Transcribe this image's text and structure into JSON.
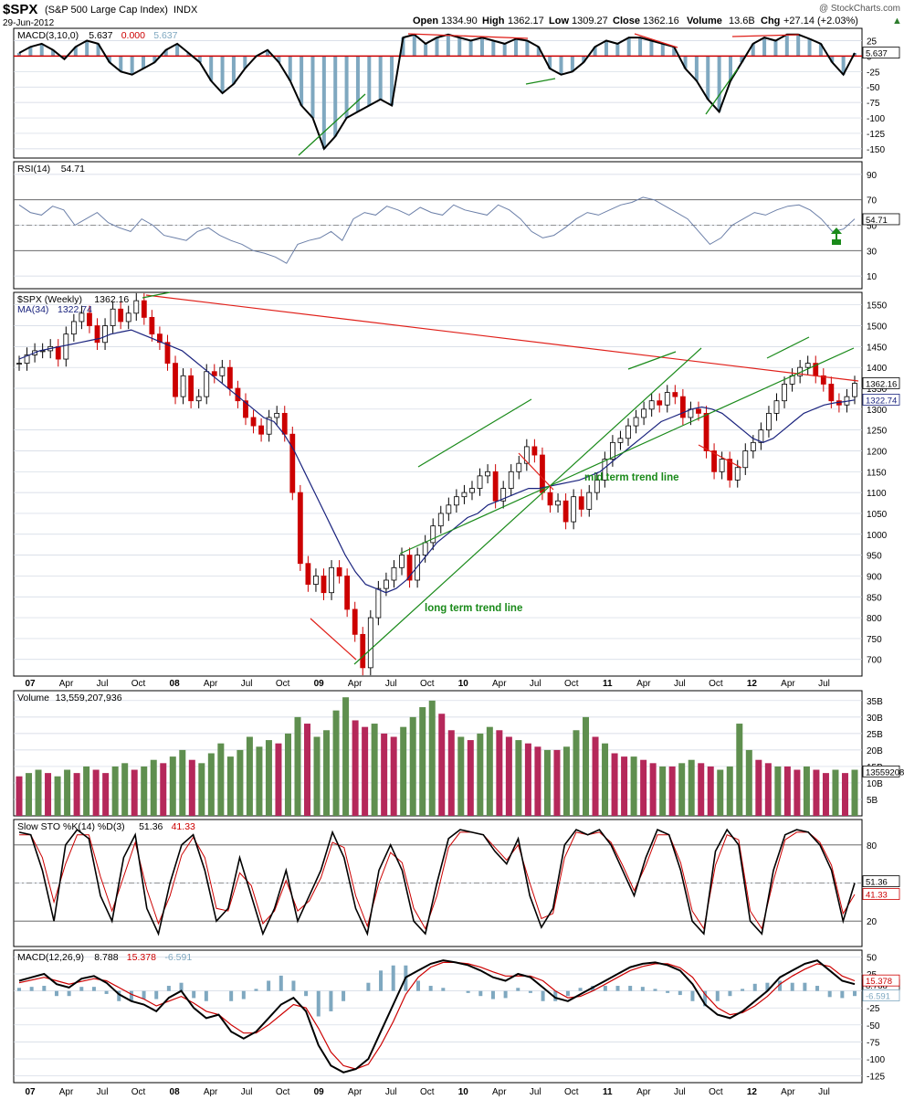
{
  "header": {
    "symbol": "$SPX",
    "description": "(S&P 500 Large Cap Index)",
    "exchange": "INDX",
    "date": "29-Jun-2012",
    "watermark": "@ StockCharts.com",
    "open_label": "Open",
    "open": "1334.90",
    "high_label": "High",
    "high": "1362.17",
    "low_label": "Low",
    "low": "1309.27",
    "close_label": "Close",
    "close": "1362.16",
    "volume_label": "Volume",
    "volume": "13.6B",
    "chg_label": "Chg",
    "chg": "+27.14 (+2.03%)",
    "chg_arrow": "▲"
  },
  "colors": {
    "up": "#2e7d2e",
    "down": "#cc0000",
    "ma": "#1a237e",
    "hist": "#7fa8c0",
    "rsi": "#6b7fa8",
    "vol_up": "#5f8f4f",
    "vol_down": "#b5285a",
    "grid": "#cfd6e2",
    "annotation_green": "#1a8a1a",
    "annotation_red": "#e0201a"
  },
  "time_axis": [
    "07",
    "Apr",
    "Jul",
    "Oct",
    "08",
    "Apr",
    "Jul",
    "Oct",
    "09",
    "Apr",
    "Jul",
    "Oct",
    "10",
    "Apr",
    "Jul",
    "Oct",
    "11",
    "Apr",
    "Jul",
    "Oct",
    "12",
    "Apr",
    "Jul"
  ],
  "annotations": {
    "mid_term": "mid term trend line",
    "long_term": "long term trend line"
  },
  "chart_data": [
    {
      "type": "line",
      "panel": "MACD(3,10,0)",
      "legend": [
        "MACD(3,10,0)",
        "5.637",
        "0.000",
        "5.637"
      ],
      "yticks": [
        25,
        0,
        -25,
        -50,
        -75,
        -100,
        -125,
        -150
      ],
      "ylim": [
        -165,
        45
      ],
      "last_value": "5.637",
      "series": [
        {
          "name": "MACD(3,10,0)",
          "values": [
            5,
            15,
            20,
            10,
            -5,
            15,
            25,
            20,
            -10,
            -25,
            -30,
            -20,
            -10,
            10,
            20,
            5,
            -10,
            -40,
            -60,
            -45,
            -20,
            0,
            10,
            -10,
            -40,
            -80,
            -100,
            -150,
            -130,
            -100,
            -90,
            -80,
            -70,
            -80,
            30,
            35,
            20,
            30,
            35,
            30,
            25,
            30,
            25,
            20,
            28,
            25,
            15,
            -20,
            -30,
            -25,
            -10,
            15,
            25,
            20,
            30,
            30,
            25,
            20,
            15,
            -20,
            -40,
            -70,
            -90,
            -40,
            -10,
            20,
            30,
            25,
            35,
            35,
            28,
            20,
            -10,
            -30,
            5
          ]
        }
      ]
    },
    {
      "type": "line",
      "panel": "RSI(14)",
      "legend": [
        "RSI(14)",
        "54.71"
      ],
      "yticks": [
        90,
        70,
        50,
        30,
        10
      ],
      "ylim": [
        0,
        100
      ],
      "overbought": 70,
      "oversold": 30,
      "last_value": "54.71",
      "series": [
        {
          "name": "RSI(14)",
          "values": [
            66,
            60,
            58,
            65,
            62,
            50,
            55,
            60,
            52,
            48,
            45,
            55,
            50,
            42,
            40,
            38,
            45,
            48,
            42,
            38,
            35,
            30,
            28,
            25,
            20,
            35,
            38,
            40,
            45,
            38,
            55,
            60,
            58,
            65,
            62,
            58,
            64,
            60,
            58,
            66,
            62,
            60,
            58,
            66,
            62,
            55,
            45,
            40,
            42,
            48,
            55,
            60,
            58,
            62,
            66,
            68,
            72,
            70,
            65,
            60,
            55,
            45,
            35,
            40,
            50,
            55,
            60,
            58,
            62,
            65,
            66,
            62,
            55,
            45,
            47,
            55
          ]
        }
      ]
    },
    {
      "type": "candlestick",
      "panel": "$SPX (Weekly)",
      "legend": [
        "$SPX (Weekly)",
        "1362.16"
      ],
      "ma_legend": [
        "MA(34)",
        "1322.74"
      ],
      "yticks": [
        1550,
        1500,
        1450,
        1400,
        1350,
        1300,
        1250,
        1200,
        1150,
        1100,
        1050,
        1000,
        950,
        900,
        850,
        800,
        750,
        700
      ],
      "ylim": [
        660,
        1580
      ],
      "last_close": "1362.16",
      "last_ma": "1322.74",
      "close": [
        1410,
        1430,
        1440,
        1440,
        1450,
        1420,
        1480,
        1510,
        1530,
        1500,
        1460,
        1500,
        1540,
        1510,
        1530,
        1560,
        1520,
        1480,
        1460,
        1410,
        1330,
        1380,
        1320,
        1330,
        1390,
        1380,
        1400,
        1350,
        1320,
        1280,
        1260,
        1240,
        1280,
        1290,
        1240,
        1100,
        930,
        880,
        900,
        860,
        920,
        900,
        820,
        760,
        680,
        800,
        870,
        890,
        920,
        950,
        890,
        950,
        980,
        1020,
        1050,
        1070,
        1090,
        1100,
        1110,
        1140,
        1150,
        1080,
        1110,
        1150,
        1170,
        1210,
        1190,
        1100,
        1070,
        1080,
        1030,
        1090,
        1060,
        1100,
        1130,
        1180,
        1220,
        1230,
        1260,
        1280,
        1300,
        1320,
        1310,
        1340,
        1330,
        1280,
        1300,
        1290,
        1200,
        1150,
        1180,
        1130,
        1160,
        1200,
        1220,
        1250,
        1290,
        1320,
        1360,
        1380,
        1400,
        1410,
        1380,
        1360,
        1320,
        1310,
        1330,
        1362
      ],
      "ma34": [
        1420,
        1430,
        1440,
        1445,
        1450,
        1455,
        1460,
        1465,
        1470,
        1480,
        1485,
        1490,
        1480,
        1470,
        1460,
        1450,
        1440,
        1420,
        1400,
        1380,
        1360,
        1340,
        1320,
        1300,
        1280,
        1270,
        1240,
        1200,
        1150,
        1100,
        1050,
        1000,
        950,
        910,
        880,
        870,
        860,
        870,
        890,
        920,
        950,
        980,
        1000,
        1020,
        1040,
        1050,
        1070,
        1080,
        1090,
        1100,
        1110,
        1110,
        1115,
        1120,
        1125,
        1130,
        1140,
        1150,
        1170,
        1190,
        1210,
        1230,
        1250,
        1270,
        1280,
        1290,
        1300,
        1305,
        1300,
        1290,
        1270,
        1250,
        1230,
        1220,
        1230,
        1250,
        1270,
        1290,
        1300,
        1310,
        1315,
        1318,
        1322
      ]
    },
    {
      "type": "bar",
      "panel": "Volume",
      "legend": [
        "Volume",
        "13,559,207,936"
      ],
      "yticks": [
        "35B",
        "30B",
        "25B",
        "20B",
        "15B",
        "10B",
        "5B"
      ],
      "ylim": [
        0,
        38
      ],
      "last_value": "13559208",
      "values": [
        12,
        13,
        14,
        13,
        12,
        14,
        13,
        15,
        14,
        13,
        15,
        16,
        14,
        15,
        17,
        16,
        18,
        20,
        17,
        16,
        19,
        22,
        18,
        20,
        24,
        21,
        23,
        22,
        25,
        30,
        28,
        24,
        26,
        32,
        36,
        29,
        27,
        28,
        25,
        24,
        27,
        30,
        33,
        35,
        31,
        26,
        24,
        23,
        25,
        27,
        26,
        24,
        23,
        22,
        21,
        20,
        20,
        21,
        26,
        30,
        24,
        22,
        19,
        18,
        18,
        17,
        16,
        15,
        15,
        16,
        17,
        16,
        15,
        14,
        15,
        28,
        20,
        17,
        16,
        15,
        15,
        14,
        15,
        14,
        13,
        14,
        13,
        14
      ]
    },
    {
      "type": "line",
      "panel": "Slow STO %K(14) %D(3)",
      "legend": [
        "Slow STO %K(14) %D(3)",
        "51.36",
        "41.33"
      ],
      "yticks": [
        80,
        50,
        20
      ],
      "ylim": [
        0,
        100
      ],
      "overbought": 80,
      "oversold": 20,
      "last_k": "51.36",
      "last_d": "41.33",
      "series": [
        {
          "name": "%K(14)",
          "values": [
            90,
            88,
            60,
            20,
            80,
            92,
            85,
            40,
            20,
            70,
            88,
            30,
            10,
            50,
            80,
            88,
            60,
            20,
            30,
            70,
            40,
            10,
            30,
            60,
            20,
            40,
            60,
            90,
            70,
            30,
            10,
            60,
            80,
            60,
            20,
            10,
            50,
            85,
            92,
            90,
            88,
            75,
            65,
            85,
            40,
            15,
            30,
            80,
            92,
            88,
            92,
            80,
            60,
            40,
            70,
            92,
            88,
            60,
            20,
            10,
            75,
            92,
            80,
            20,
            10,
            60,
            88,
            92,
            90,
            80,
            60,
            20,
            50
          ]
        },
        {
          "name": "%D(3)",
          "values": [
            88,
            88,
            70,
            35,
            65,
            88,
            88,
            55,
            28,
            55,
            82,
            45,
            18,
            40,
            72,
            86,
            70,
            30,
            28,
            58,
            48,
            18,
            28,
            52,
            28,
            36,
            54,
            82,
            78,
            40,
            16,
            50,
            74,
            66,
            30,
            14,
            40,
            78,
            90,
            90,
            88,
            78,
            68,
            80,
            50,
            22,
            26,
            70,
            90,
            88,
            90,
            82,
            64,
            44,
            64,
            88,
            88,
            66,
            28,
            14,
            64,
            88,
            84,
            28,
            14,
            52,
            84,
            90,
            90,
            82,
            64,
            26,
            41
          ]
        }
      ]
    },
    {
      "type": "line",
      "panel": "MACD(12,26,9)",
      "legend": [
        "MACD(12,26,9)",
        "8.788",
        "15.378",
        "-6.591"
      ],
      "yticks": [
        50,
        25,
        0,
        -25,
        -50,
        -75,
        -100,
        -125
      ],
      "ylim": [
        -135,
        60
      ],
      "last_macd": "8.788",
      "last_signal": "15.378",
      "last_hist": "-6.591",
      "series": [
        {
          "name": "MACD(12,26,9)",
          "values": [
            15,
            20,
            25,
            10,
            5,
            18,
            22,
            12,
            -5,
            -15,
            -20,
            -30,
            -10,
            0,
            -25,
            -40,
            -35,
            -60,
            -70,
            -60,
            -40,
            -20,
            -10,
            -30,
            -80,
            -110,
            -120,
            -115,
            -100,
            -60,
            -20,
            20,
            30,
            40,
            45,
            42,
            38,
            30,
            20,
            15,
            25,
            20,
            5,
            -10,
            -15,
            -5,
            5,
            15,
            25,
            35,
            40,
            42,
            38,
            30,
            10,
            -20,
            -35,
            -40,
            -30,
            -15,
            0,
            20,
            30,
            40,
            45,
            30,
            15,
            10
          ]
        },
        {
          "name": "Signal",
          "values": [
            12,
            16,
            20,
            15,
            10,
            14,
            18,
            15,
            5,
            -5,
            -12,
            -22,
            -15,
            -8,
            -18,
            -30,
            -35,
            -50,
            -62,
            -62,
            -50,
            -35,
            -20,
            -25,
            -55,
            -90,
            -110,
            -115,
            -108,
            -80,
            -45,
            -5,
            20,
            35,
            42,
            42,
            40,
            35,
            28,
            22,
            22,
            22,
            15,
            0,
            -10,
            -8,
            0,
            10,
            20,
            30,
            36,
            40,
            40,
            34,
            20,
            -5,
            -25,
            -35,
            -32,
            -22,
            -8,
            10,
            22,
            32,
            40,
            36,
            22,
            15
          ]
        }
      ]
    }
  ]
}
